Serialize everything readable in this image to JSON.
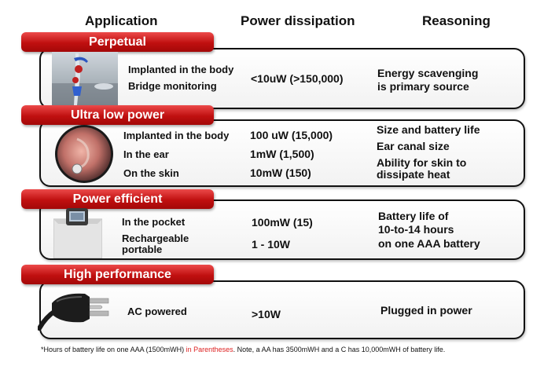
{
  "headers": {
    "application": "Application",
    "power": "Power dissipation",
    "reasoning": "Reasoning"
  },
  "rows": [
    {
      "title": "Perpetual",
      "image": "implant-bridge-photo",
      "apps": [
        "Implanted in the body",
        "Bridge monitoring"
      ],
      "power": [
        "<10uW (>150,000)"
      ],
      "reasoning": [
        "Energy scavenging",
        "is primary source"
      ]
    },
    {
      "title": "Ultra low power",
      "image": "ear-canal-photo",
      "apps": [
        "Implanted in the body",
        "In the ear",
        "On the skin"
      ],
      "power": [
        "100 uW (15,000)",
        "1mW (1,500)",
        "10mW (150)"
      ],
      "reasoning": [
        "Size and battery life",
        "Ear canal size",
        "Ability for skin to",
        "dissipate heat"
      ]
    },
    {
      "title": "Power efficient",
      "image": "pocket-device-photo",
      "apps": [
        "In the pocket",
        "Rechargeable",
        "portable"
      ],
      "power": [
        "100mW (15)",
        "1 - 10W"
      ],
      "reasoning": [
        "Battery life of",
        "10-to-14 hours",
        "on one AAA battery"
      ]
    },
    {
      "title": "High performance",
      "image": "ac-plug-photo",
      "apps": [
        "AC powered"
      ],
      "power": [
        ">10W"
      ],
      "reasoning": [
        "Plugged in power"
      ]
    }
  ],
  "footnote": {
    "part1": "*Hours of battery life on one AAA (1500mWH) ",
    "highlight": "in Parentheses",
    "part2": ".  Note, a AA has 3500mWH and a C has 10,000mWH of battery life."
  },
  "colors": {
    "banner": "#c01010",
    "highlight": "#d22222"
  }
}
